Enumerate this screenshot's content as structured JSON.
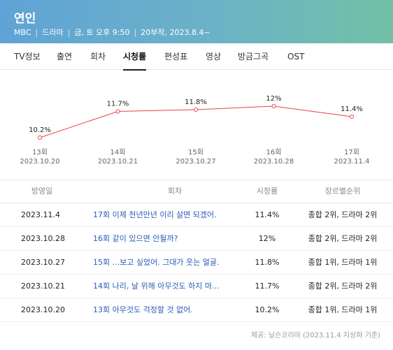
{
  "header": {
    "title": "연인",
    "channel": "MBC",
    "genre": "드라마",
    "schedule": "금, 토 오후 9:50",
    "info": "20부작, 2023.8.4~"
  },
  "tabs": [
    {
      "label": "TV정보"
    },
    {
      "label": "출연"
    },
    {
      "label": "회차"
    },
    {
      "label": "시청률"
    },
    {
      "label": "편성표"
    },
    {
      "label": "영상"
    },
    {
      "label": "방금그곡"
    },
    {
      "label": "OST"
    }
  ],
  "chart_data": {
    "type": "line",
    "categories": [
      "13회",
      "14회",
      "15회",
      "16회",
      "17회"
    ],
    "dates": [
      "2023.10.20",
      "2023.10.21",
      "2023.10.27",
      "2023.10.28",
      "2023.11.4"
    ],
    "series": [
      {
        "values": [
          10.2,
          11.7,
          11.8,
          12,
          11.4
        ]
      }
    ],
    "value_labels": [
      "10.2%",
      "11.7%",
      "11.8%",
      "12%",
      "11.4%"
    ],
    "line_color": "#e8424b",
    "grid": false,
    "legend": "none"
  },
  "table": {
    "headers": {
      "date": "방영일",
      "episode": "회차",
      "rating": "시청률",
      "rank": "장르별순위"
    },
    "rows": [
      {
        "date": "2023.11.4",
        "episode": "17회 이제 천년만년 이리 살면 되겠어.",
        "rating": "11.4%",
        "rank": "종합 2위, 드라마 2위"
      },
      {
        "date": "2023.10.28",
        "episode": "16회 같이 있으면 안될까?",
        "rating": "12%",
        "rank": "종합 2위, 드라마 2위"
      },
      {
        "date": "2023.10.27",
        "episode": "15회 ...보고 싶었어. 그대가 웃는 얼굴.",
        "rating": "11.8%",
        "rank": "종합 1위, 드라마 1위"
      },
      {
        "date": "2023.10.21",
        "episode": "14회 나리, 날 위해 아무것도 하지 마...",
        "rating": "11.7%",
        "rank": "종합 2위, 드라마 2위"
      },
      {
        "date": "2023.10.20",
        "episode": "13회 아무것도 걱정할 것 없어.",
        "rating": "10.2%",
        "rank": "종합 1위, 드라마 1위"
      }
    ]
  },
  "source": "제공: 닐슨코리아 (2023.11.4 지상파 기준)"
}
